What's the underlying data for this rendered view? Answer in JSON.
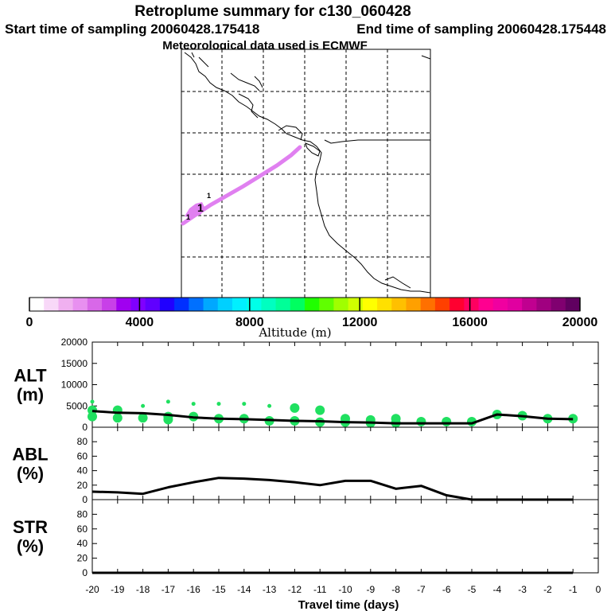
{
  "header": {
    "title": "Retroplume summary for c130_060428",
    "start_label": "Start time of sampling 20060428.175418",
    "end_label": "End time of sampling 20060428.175448",
    "met_label": "Meteorological data used is ECMWF"
  },
  "map": {
    "plume_color": "#e080f0",
    "markers": [
      "1",
      "1",
      "1"
    ]
  },
  "colorbar": {
    "title": "Altitude (m)",
    "ticks": [
      "0",
      "4000",
      "8000",
      "12000",
      "16000",
      "20000"
    ],
    "colors": [
      "#ffffff",
      "#f8d8f8",
      "#f0b0f0",
      "#e890f0",
      "#d868e8",
      "#c840e8",
      "#a000f0",
      "#8000ff",
      "#6000ff",
      "#2000ff",
      "#0030ff",
      "#0070ff",
      "#00a8ff",
      "#00d0ff",
      "#00f0ff",
      "#00ffe8",
      "#00ffc0",
      "#00ff98",
      "#00ff60",
      "#20ff00",
      "#60ff00",
      "#a0ff00",
      "#d0ff00",
      "#ffff00",
      "#ffe000",
      "#ffc000",
      "#ffa000",
      "#ff7000",
      "#ff4000",
      "#ff0030",
      "#ff0060",
      "#ff0090",
      "#f000a0",
      "#e000a0",
      "#c00090",
      "#a00080",
      "#800070",
      "#600060"
    ]
  },
  "chart_data": [
    {
      "type": "line",
      "panel": "ALT",
      "ylabel_top": "ALT",
      "ylabel_unit": "(m)",
      "ylim": [
        0,
        20000
      ],
      "yticks": [
        "20000",
        "15000",
        "10000",
        "5000",
        "0"
      ],
      "series": [
        {
          "name": "mean altitude",
          "x": [
            -20,
            -19,
            -18,
            -17,
            -16,
            -15,
            -14,
            -13,
            -12,
            -11,
            -10,
            -9,
            -8,
            -7,
            -6,
            -5,
            -4,
            -3,
            -2,
            -1
          ],
          "values": [
            3800,
            3400,
            3300,
            2900,
            2300,
            2000,
            1900,
            1700,
            1500,
            1400,
            1200,
            1100,
            900,
            900,
            900,
            900,
            3000,
            2600,
            2000,
            1900
          ]
        }
      ],
      "scatter": [
        {
          "x": -20,
          "y": 6000
        },
        {
          "x": -20,
          "y": 4000
        },
        {
          "x": -20,
          "y": 2500
        },
        {
          "x": -19,
          "y": 4000
        },
        {
          "x": -19,
          "y": 2200
        },
        {
          "x": -18,
          "y": 5000
        },
        {
          "x": -18,
          "y": 2200
        },
        {
          "x": -17,
          "y": 6000
        },
        {
          "x": -17,
          "y": 2500
        },
        {
          "x": -17,
          "y": 1800
        },
        {
          "x": -16,
          "y": 5500
        },
        {
          "x": -16,
          "y": 2500
        },
        {
          "x": -15,
          "y": 5500
        },
        {
          "x": -15,
          "y": 2000
        },
        {
          "x": -14,
          "y": 5500
        },
        {
          "x": -14,
          "y": 2000
        },
        {
          "x": -13,
          "y": 5000
        },
        {
          "x": -13,
          "y": 1500
        },
        {
          "x": -12,
          "y": 4500
        },
        {
          "x": -12,
          "y": 1500
        },
        {
          "x": -11,
          "y": 4000
        },
        {
          "x": -11,
          "y": 1200
        },
        {
          "x": -10,
          "y": 2000
        },
        {
          "x": -10,
          "y": 1200
        },
        {
          "x": -9,
          "y": 1700
        },
        {
          "x": -9,
          "y": 1000
        },
        {
          "x": -8,
          "y": 2000
        },
        {
          "x": -8,
          "y": 1000
        },
        {
          "x": -7,
          "y": 1300
        },
        {
          "x": -6,
          "y": 1300
        },
        {
          "x": -5,
          "y": 1300
        },
        {
          "x": -4,
          "y": 3000
        },
        {
          "x": -3,
          "y": 2700
        },
        {
          "x": -2,
          "y": 2000
        },
        {
          "x": -1,
          "y": 2000
        }
      ],
      "scatter_color": "#20e060"
    },
    {
      "type": "line",
      "panel": "ABL",
      "ylabel_top": "ABL",
      "ylabel_unit": "(%)",
      "ylim": [
        0,
        100
      ],
      "yticks": [
        "80",
        "60",
        "40",
        "20",
        "0"
      ],
      "series": [
        {
          "name": "ABL fraction",
          "x": [
            -20,
            -19,
            -18,
            -17,
            -16,
            -15,
            -14,
            -13,
            -12,
            -11,
            -10,
            -9,
            -8,
            -7,
            -6,
            -5,
            -4,
            -3,
            -2,
            -1
          ],
          "values": [
            11,
            10,
            8,
            17,
            24,
            30,
            29,
            27,
            24,
            20,
            26,
            26,
            15,
            19,
            6,
            0,
            0,
            0,
            0,
            0
          ]
        }
      ]
    },
    {
      "type": "line",
      "panel": "STR",
      "ylabel_top": "STR",
      "ylabel_unit": "(%)",
      "ylim": [
        0,
        100
      ],
      "yticks": [
        "80",
        "60",
        "40",
        "20",
        "0"
      ],
      "series": [
        {
          "name": "STR fraction",
          "x": [
            -20,
            -19,
            -18,
            -17,
            -16,
            -15,
            -14,
            -13,
            -12,
            -11,
            -10,
            -9,
            -8,
            -7,
            -6,
            -5,
            -4,
            -3,
            -2,
            -1
          ],
          "values": [
            0,
            0,
            0,
            0,
            0,
            0,
            0,
            0,
            0,
            0,
            0,
            0,
            0,
            0,
            0,
            0,
            0,
            0,
            0,
            0
          ]
        }
      ]
    }
  ],
  "xaxis": {
    "title": "Travel time (days)",
    "ticks": [
      "-20",
      "-19",
      "-18",
      "-17",
      "-16",
      "-15",
      "-14",
      "-13",
      "-12",
      "-11",
      "-10",
      "-9",
      "-8",
      "-7",
      "-6",
      "-5",
      "-4",
      "-3",
      "-2",
      "-1",
      "0"
    ]
  }
}
